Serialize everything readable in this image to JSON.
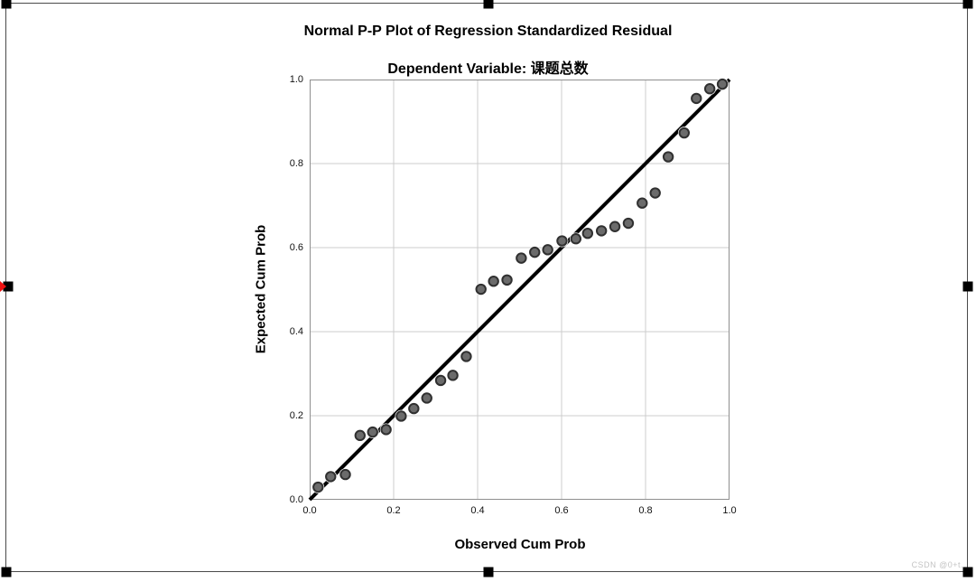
{
  "watermark": "CSDN @0+t.",
  "selection": {
    "border_color": "#4a4a4a",
    "handle_color": "#000000",
    "anchor_color": "#ee1111"
  },
  "chart_data": {
    "type": "scatter",
    "title": "Normal P-P Plot of Regression Standardized Residual",
    "subtitle": "Dependent Variable: 课题总数",
    "xlabel": "Observed Cum Prob",
    "ylabel": "Expected Cum Prob",
    "xlim": [
      0.0,
      1.0
    ],
    "ylim": [
      0.0,
      1.0
    ],
    "x_ticks": [
      0.0,
      0.2,
      0.4,
      0.6,
      0.8,
      1.0
    ],
    "y_ticks": [
      0.0,
      0.2,
      0.4,
      0.6,
      0.8,
      1.0
    ],
    "tick_labels": [
      "0.0",
      "0.2",
      "0.4",
      "0.6",
      "0.8",
      "1.0"
    ],
    "grid": true,
    "legend": "none",
    "colors": {
      "grid": "#cccccc",
      "frame": "#8f8f8f"
    },
    "reference_line": {
      "from": [
        0.0,
        0.0
      ],
      "to": [
        1.0,
        1.0
      ],
      "color": "#000000",
      "width": 4
    },
    "point_style": {
      "fill": "#6b6b6b",
      "stroke": "#303030",
      "stroke_width": 2,
      "radius": 5.2,
      "halo": "#ffffff"
    },
    "points": [
      [
        0.02,
        0.03
      ],
      [
        0.05,
        0.055
      ],
      [
        0.085,
        0.06
      ],
      [
        0.12,
        0.153
      ],
      [
        0.15,
        0.161
      ],
      [
        0.182,
        0.167
      ],
      [
        0.218,
        0.199
      ],
      [
        0.248,
        0.217
      ],
      [
        0.279,
        0.242
      ],
      [
        0.312,
        0.284
      ],
      [
        0.341,
        0.296
      ],
      [
        0.373,
        0.341
      ],
      [
        0.408,
        0.501
      ],
      [
        0.438,
        0.52
      ],
      [
        0.47,
        0.523
      ],
      [
        0.504,
        0.575
      ],
      [
        0.536,
        0.589
      ],
      [
        0.567,
        0.595
      ],
      [
        0.601,
        0.616
      ],
      [
        0.634,
        0.621
      ],
      [
        0.662,
        0.634
      ],
      [
        0.695,
        0.64
      ],
      [
        0.727,
        0.65
      ],
      [
        0.759,
        0.658
      ],
      [
        0.792,
        0.706
      ],
      [
        0.823,
        0.73
      ],
      [
        0.854,
        0.816
      ],
      [
        0.892,
        0.873
      ],
      [
        0.921,
        0.955
      ],
      [
        0.953,
        0.978
      ],
      [
        0.983,
        0.989
      ]
    ]
  }
}
